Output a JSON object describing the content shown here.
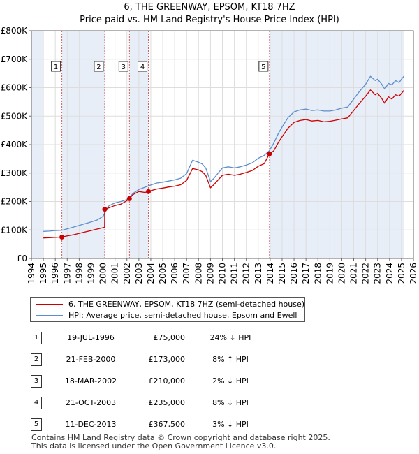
{
  "colors": {
    "property": "#cc0000",
    "hpi": "#5b8fcc",
    "shade": "#e8eef8",
    "marker_line": "#d06060",
    "grid": "#dddddd"
  },
  "title_lines": [
    "6, THE GREENWAY, EPSOM, KT18 7HZ",
    "Price paid vs. HM Land Registry's House Price Index (HPI)"
  ],
  "legend": {
    "property_label": "6, THE GREENWAY, EPSOM, KT18 7HZ (semi-detached house)",
    "hpi_label": "HPI: Average price, semi-detached house, Epsom and Ewell"
  },
  "transactions": [
    {
      "num": "1",
      "date": "19-JUL-1996",
      "price": "£75,000",
      "hpi": "24% ↓ HPI"
    },
    {
      "num": "2",
      "date": "21-FEB-2000",
      "price": "£173,000",
      "hpi": "8% ↑ HPI"
    },
    {
      "num": "3",
      "date": "18-MAR-2002",
      "price": "£210,000",
      "hpi": "2% ↓ HPI"
    },
    {
      "num": "4",
      "date": "21-OCT-2003",
      "price": "£235,000",
      "hpi": "8% ↓ HPI"
    },
    {
      "num": "5",
      "date": "11-DEC-2013",
      "price": "£367,500",
      "hpi": "3% ↓ HPI"
    }
  ],
  "footer_lines": [
    "Contains HM Land Registry data © Crown copyright and database right 2025.",
    "This data is licensed under the Open Government Licence v3.0."
  ],
  "chart_data": {
    "type": "line",
    "title": "6, THE GREENWAY, EPSOM, KT18 7HZ",
    "subtitle": "Price paid vs. HM Land Registry's House Price Index (HPI)",
    "xlabel": "",
    "ylabel": "",
    "xlim": [
      1994.0,
      2026.0
    ],
    "ylim": [
      0,
      800000
    ],
    "grid": true,
    "legend_position": "below",
    "x_ticks": [
      1994,
      1995,
      1996,
      1997,
      1998,
      1999,
      2000,
      2001,
      2002,
      2003,
      2004,
      2005,
      2006,
      2007,
      2008,
      2009,
      2010,
      2011,
      2012,
      2013,
      2014,
      2015,
      2016,
      2017,
      2018,
      2019,
      2020,
      2021,
      2022,
      2023,
      2024,
      2025,
      2026
    ],
    "y_ticks": [
      {
        "value": 0,
        "label": "£0"
      },
      {
        "value": 100000,
        "label": "£100K"
      },
      {
        "value": 200000,
        "label": "£200K"
      },
      {
        "value": 300000,
        "label": "£300K"
      },
      {
        "value": 400000,
        "label": "£400K"
      },
      {
        "value": 500000,
        "label": "£500K"
      },
      {
        "value": 600000,
        "label": "£600K"
      },
      {
        "value": 700000,
        "label": "£700K"
      },
      {
        "value": 800000,
        "label": "£800K"
      }
    ],
    "shaded_ranges": [
      [
        1994.0,
        1995.0
      ],
      [
        1996.55,
        2000.14
      ],
      [
        2002.21,
        2003.8
      ],
      [
        2013.94,
        2025.2
      ]
    ],
    "sales": [
      {
        "label": "1",
        "x": 1996.55,
        "y": 75000
      },
      {
        "label": "2",
        "x": 2000.14,
        "y": 173000
      },
      {
        "label": "3",
        "x": 2002.21,
        "y": 210000
      },
      {
        "label": "4",
        "x": 2003.8,
        "y": 235000
      },
      {
        "label": "5",
        "x": 2013.94,
        "y": 367500
      }
    ],
    "series": [
      {
        "name": "HPI: Average price, semi-detached house, Epsom and Ewell",
        "color": "#5b8fcc",
        "x": [
          1995.0,
          1995.5,
          1996.0,
          1996.55,
          1997.0,
          1997.5,
          1998.0,
          1998.5,
          1999.0,
          1999.5,
          2000.0,
          2000.14,
          2000.5,
          2001.0,
          2001.5,
          2002.0,
          2002.21,
          2002.5,
          2003.0,
          2003.5,
          2003.8,
          2004.0,
          2004.5,
          2005.0,
          2005.5,
          2006.0,
          2006.5,
          2007.0,
          2007.5,
          2008.0,
          2008.3,
          2008.6,
          2009.0,
          2009.3,
          2009.6,
          2010.0,
          2010.5,
          2011.0,
          2011.5,
          2012.0,
          2012.5,
          2013.0,
          2013.5,
          2013.94,
          2014.3,
          2014.7,
          2015.0,
          2015.5,
          2016.0,
          2016.5,
          2017.0,
          2017.5,
          2018.0,
          2018.5,
          2019.0,
          2019.5,
          2020.0,
          2020.5,
          2021.0,
          2021.5,
          2022.0,
          2022.4,
          2022.8,
          2023.0,
          2023.3,
          2023.6,
          2023.9,
          2024.2,
          2024.5,
          2024.8,
          2025.0,
          2025.2
        ],
        "y": [
          95000,
          96000,
          98000,
          99000,
          104000,
          110000,
          116000,
          122000,
          128000,
          135000,
          148000,
          160000,
          185000,
          195000,
          200000,
          207000,
          214000,
          228000,
          242000,
          250000,
          255000,
          258000,
          265000,
          268000,
          272000,
          276000,
          282000,
          298000,
          345000,
          338000,
          332000,
          318000,
          270000,
          282000,
          298000,
          318000,
          322000,
          318000,
          322000,
          328000,
          336000,
          352000,
          362000,
          379000,
          405000,
          440000,
          462000,
          495000,
          515000,
          522000,
          525000,
          520000,
          522000,
          518000,
          518000,
          522000,
          528000,
          532000,
          560000,
          588000,
          612000,
          640000,
          625000,
          630000,
          615000,
          595000,
          615000,
          610000,
          625000,
          618000,
          630000,
          640000
        ]
      },
      {
        "name": "6, THE GREENWAY, EPSOM, KT18 7HZ (semi-detached house)",
        "color": "#cc0000",
        "x": [
          1995.0,
          1995.5,
          1996.0,
          1996.55,
          1997.0,
          1997.5,
          1998.0,
          1998.5,
          1999.0,
          1999.5,
          2000.0,
          2000.13,
          2000.14,
          2000.5,
          2001.0,
          2001.5,
          2002.0,
          2002.21,
          2002.5,
          2003.0,
          2003.5,
          2003.8,
          2004.0,
          2004.5,
          2005.0,
          2005.5,
          2006.0,
          2006.5,
          2007.0,
          2007.5,
          2008.0,
          2008.3,
          2008.6,
          2009.0,
          2009.3,
          2009.6,
          2010.0,
          2010.5,
          2011.0,
          2011.5,
          2012.0,
          2012.5,
          2013.0,
          2013.5,
          2013.94,
          2014.3,
          2014.7,
          2015.0,
          2015.5,
          2016.0,
          2016.5,
          2017.0,
          2017.5,
          2018.0,
          2018.5,
          2019.0,
          2019.5,
          2020.0,
          2020.5,
          2021.0,
          2021.5,
          2022.0,
          2022.4,
          2022.8,
          2023.0,
          2023.3,
          2023.6,
          2023.9,
          2024.2,
          2024.5,
          2024.8,
          2025.0,
          2025.2
        ],
        "y": [
          72000,
          73000,
          74000,
          75000,
          79000,
          83000,
          88000,
          93000,
          98000,
          103000,
          108000,
          110000,
          173000,
          178000,
          186000,
          191000,
          203000,
          210000,
          224000,
          235000,
          232000,
          235000,
          238000,
          244000,
          247000,
          251000,
          254000,
          259000,
          274000,
          316000,
          311000,
          305000,
          292000,
          248000,
          260000,
          274000,
          292000,
          296000,
          292000,
          296000,
          302000,
          309000,
          324000,
          333000,
          367500,
          378000,
          408000,
          428000,
          458000,
          478000,
          485000,
          488000,
          483000,
          485000,
          480000,
          482000,
          486000,
          490000,
          494000,
          520000,
          546000,
          570000,
          592000,
          575000,
          580000,
          565000,
          545000,
          568000,
          560000,
          575000,
          570000,
          580000,
          590000
        ]
      }
    ]
  }
}
